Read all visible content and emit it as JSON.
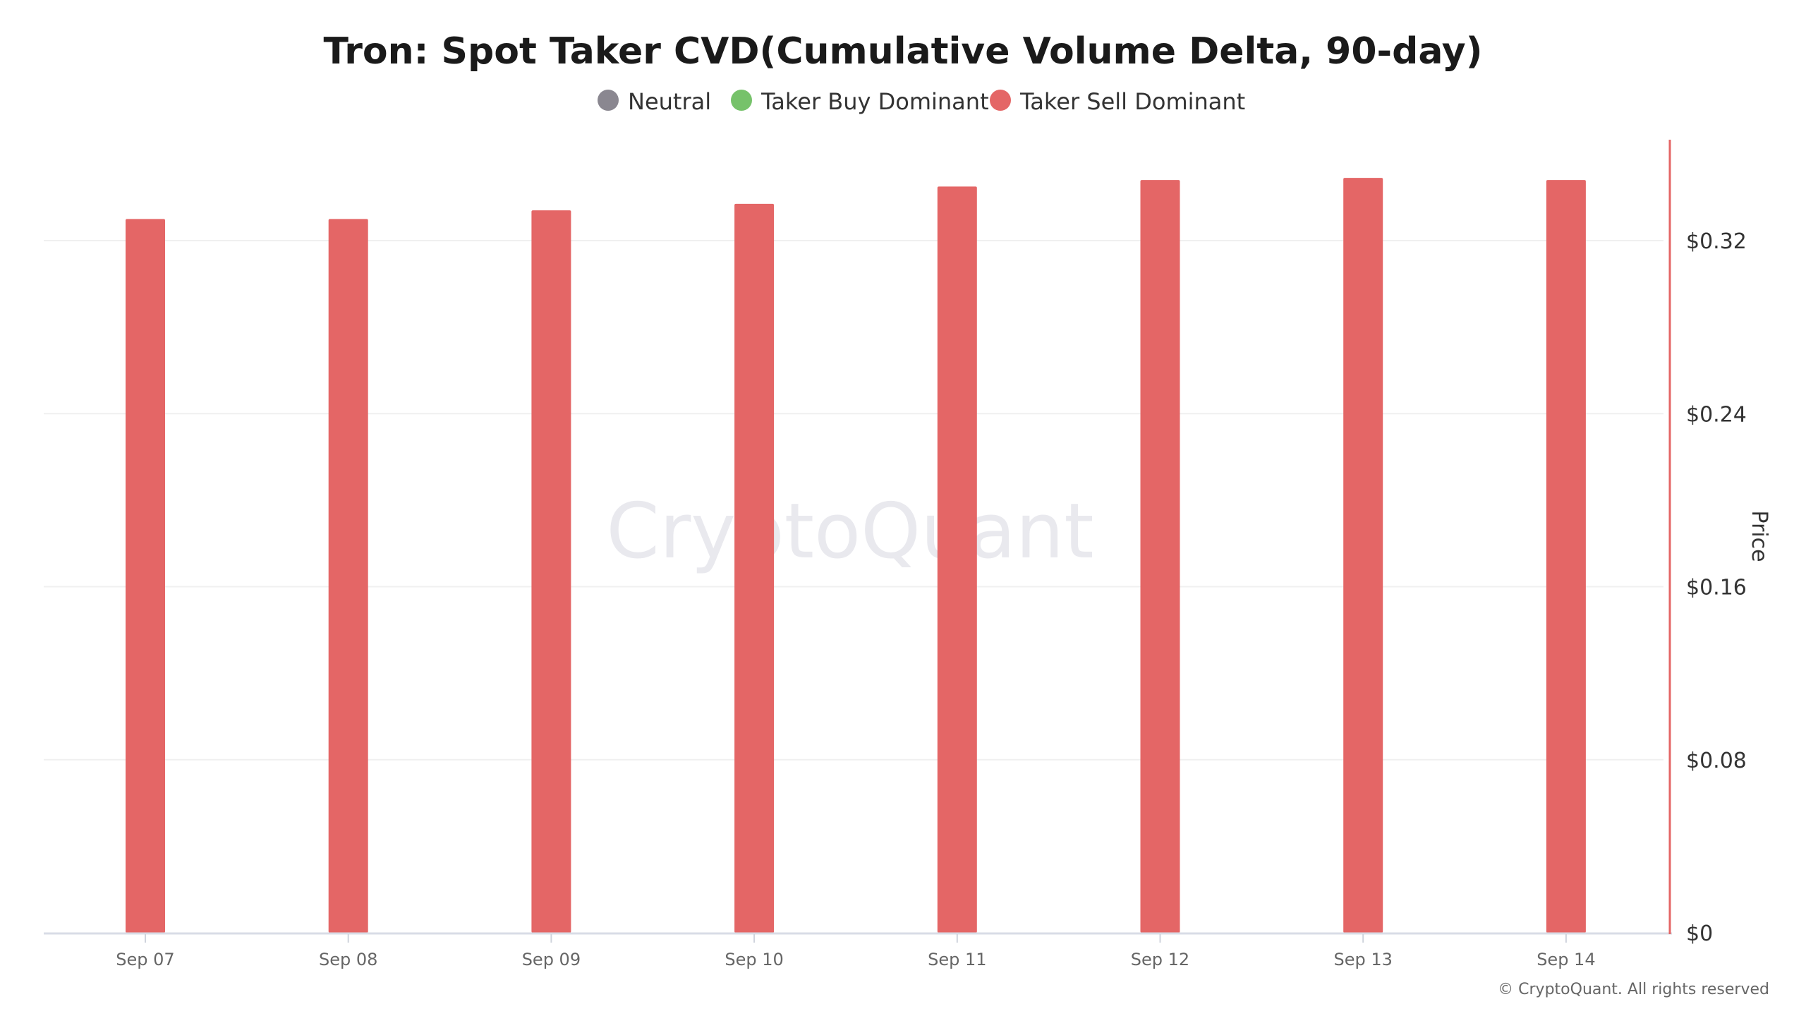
{
  "chart_data": {
    "type": "bar",
    "title": "Tron: Spot Taker CVD(Cumulative Volume Delta, 90-day)",
    "legend": [
      {
        "label": "Neutral",
        "color": "#8a8790"
      },
      {
        "label": "Taker Buy Dominant",
        "color": "#76c26a"
      },
      {
        "label": "Taker Sell Dominant",
        "color": "#e46666"
      }
    ],
    "legend_position": "top-center",
    "categories": [
      "Sep 07",
      "Sep 08",
      "Sep 09",
      "Sep 10",
      "Sep 11",
      "Sep 12",
      "Sep 13",
      "Sep 14"
    ],
    "series": [
      {
        "name": "Taker Sell Dominant",
        "color": "#e46666",
        "values": [
          0.33,
          0.33,
          0.334,
          0.337,
          0.345,
          0.348,
          0.349,
          0.348
        ]
      }
    ],
    "ylabel": "Price",
    "ylabel_position": "right",
    "y_axis_color": "#e46666",
    "ylim": [
      0,
      0.366
    ],
    "yticks": [
      0,
      0.08,
      0.16,
      0.24,
      0.32
    ],
    "ytick_labels": [
      "$0",
      "$0.08",
      "$0.16",
      "$0.24",
      "$0.32"
    ],
    "grid": true,
    "watermark": "CryptoQuant",
    "copyright": "© CryptoQuant. All rights reserved"
  }
}
